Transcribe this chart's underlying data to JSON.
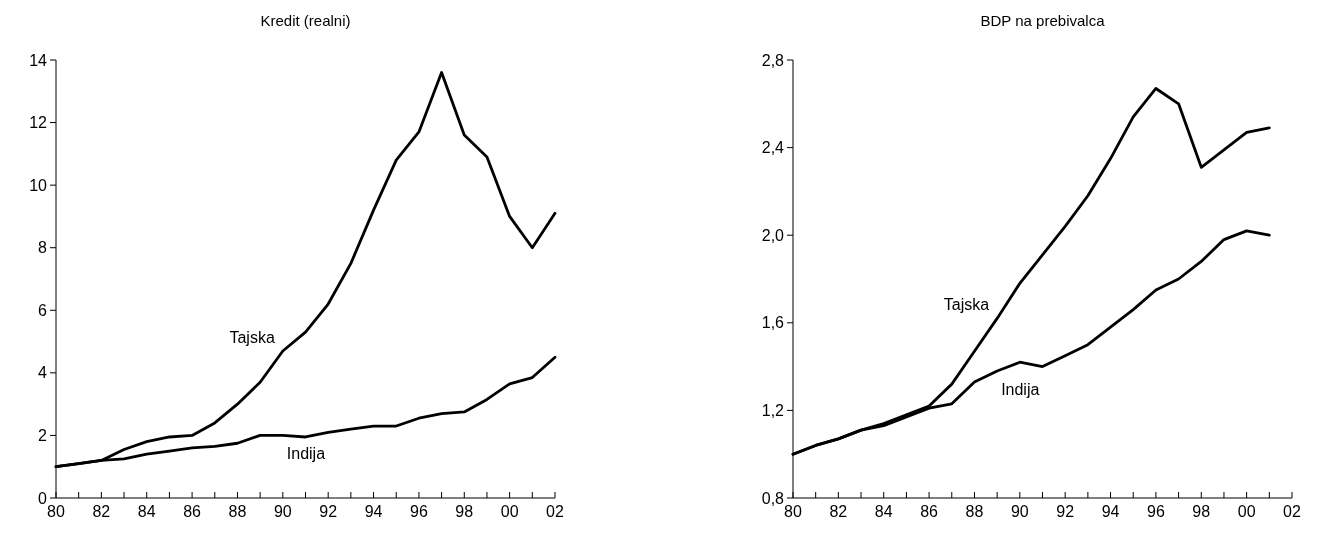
{
  "chart_data": [
    {
      "type": "line",
      "title": "Kredit (realni)",
      "x": [
        1980,
        1981,
        1982,
        1983,
        1984,
        1985,
        1986,
        1987,
        1988,
        1989,
        1990,
        1991,
        1992,
        1993,
        1994,
        1995,
        1996,
        1997,
        1998,
        1999,
        2000,
        2001,
        2002
      ],
      "series": [
        {
          "name": "Tajska",
          "color": "#000000",
          "values": [
            1.0,
            1.1,
            1.2,
            1.55,
            1.8,
            1.95,
            2.0,
            2.4,
            3.0,
            3.7,
            4.7,
            5.3,
            6.2,
            7.5,
            9.2,
            10.8,
            11.7,
            13.6,
            11.6,
            10.9,
            9.0,
            8.0,
            9.1
          ]
        },
        {
          "name": "Indija",
          "color": "#000000",
          "values": [
            1.0,
            1.1,
            1.2,
            1.25,
            1.4,
            1.5,
            1.6,
            1.65,
            1.75,
            2.0,
            2.0,
            1.95,
            2.1,
            2.2,
            2.3,
            2.3,
            2.55,
            2.7,
            2.75,
            3.15,
            3.65,
            3.85,
            4.5
          ]
        }
      ],
      "xlim": [
        1980,
        2002
      ],
      "xticks": [
        {
          "value": 1980,
          "label": "80"
        },
        {
          "value": 1981,
          "label": null
        },
        {
          "value": 1982,
          "label": "82"
        },
        {
          "value": 1983,
          "label": null
        },
        {
          "value": 1984,
          "label": "84"
        },
        {
          "value": 1985,
          "label": null
        },
        {
          "value": 1986,
          "label": "86"
        },
        {
          "value": 1987,
          "label": null
        },
        {
          "value": 1988,
          "label": "88"
        },
        {
          "value": 1989,
          "label": null
        },
        {
          "value": 1990,
          "label": "90"
        },
        {
          "value": 1991,
          "label": null
        },
        {
          "value": 1992,
          "label": "92"
        },
        {
          "value": 1993,
          "label": null
        },
        {
          "value": 1994,
          "label": "94"
        },
        {
          "value": 1995,
          "label": null
        },
        {
          "value": 1996,
          "label": "96"
        },
        {
          "value": 1997,
          "label": null
        },
        {
          "value": 1998,
          "label": "98"
        },
        {
          "value": 1999,
          "label": null
        },
        {
          "value": 2000,
          "label": "00"
        },
        {
          "value": 2001,
          "label": null
        },
        {
          "value": 2002,
          "label": "02"
        }
      ],
      "ylim": [
        0,
        14
      ],
      "yticks": [
        0,
        2,
        4,
        6,
        8,
        10,
        12,
        14
      ]
    },
    {
      "type": "line",
      "title": "BDP na prebivalca",
      "x": [
        1980,
        1981,
        1982,
        1983,
        1984,
        1985,
        1986,
        1987,
        1988,
        1989,
        1990,
        1991,
        1992,
        1993,
        1994,
        1995,
        1996,
        1997,
        1998,
        1999,
        2000,
        2001
      ],
      "series": [
        {
          "name": "Tajska",
          "color": "#000000",
          "values": [
            1.0,
            1.04,
            1.07,
            1.11,
            1.14,
            1.18,
            1.22,
            1.32,
            1.47,
            1.62,
            1.78,
            1.91,
            2.04,
            2.18,
            2.35,
            2.54,
            2.67,
            2.6,
            2.31,
            2.39,
            2.47,
            2.49
          ]
        },
        {
          "name": "Indija",
          "color": "#000000",
          "values": [
            1.0,
            1.04,
            1.07,
            1.11,
            1.13,
            1.17,
            1.21,
            1.23,
            1.33,
            1.38,
            1.42,
            1.4,
            1.45,
            1.5,
            1.58,
            1.66,
            1.75,
            1.8,
            1.88,
            1.98,
            2.02,
            2.0
          ]
        }
      ],
      "xlim": [
        1980,
        2002
      ],
      "xticks": [
        {
          "value": 1980,
          "label": "80"
        },
        {
          "value": 1981,
          "label": null
        },
        {
          "value": 1982,
          "label": "82"
        },
        {
          "value": 1983,
          "label": null
        },
        {
          "value": 1984,
          "label": "84"
        },
        {
          "value": 1985,
          "label": null
        },
        {
          "value": 1986,
          "label": "86"
        },
        {
          "value": 1987,
          "label": null
        },
        {
          "value": 1988,
          "label": "88"
        },
        {
          "value": 1989,
          "label": null
        },
        {
          "value": 1990,
          "label": "90"
        },
        {
          "value": 1991,
          "label": null
        },
        {
          "value": 1992,
          "label": "92"
        },
        {
          "value": 1993,
          "label": null
        },
        {
          "value": 1994,
          "label": "94"
        },
        {
          "value": 1995,
          "label": null
        },
        {
          "value": 1996,
          "label": "96"
        },
        {
          "value": 1997,
          "label": null
        },
        {
          "value": 1998,
          "label": "98"
        },
        {
          "value": 1999,
          "label": null
        },
        {
          "value": 2000,
          "label": "00"
        },
        {
          "value": 2001,
          "label": null
        },
        {
          "value": 2002,
          "label": "02"
        }
      ],
      "ylim": [
        0.8,
        2.8
      ],
      "yticks": [
        {
          "value": 0.8,
          "label": "0,8"
        },
        {
          "value": 1.2,
          "label": "1,2"
        },
        {
          "value": 1.6,
          "label": "1,6"
        },
        {
          "value": 2.0,
          "label": "2,0"
        },
        {
          "value": 2.4,
          "label": "2,4"
        },
        {
          "value": 2.8,
          "label": "2,8"
        }
      ]
    }
  ]
}
